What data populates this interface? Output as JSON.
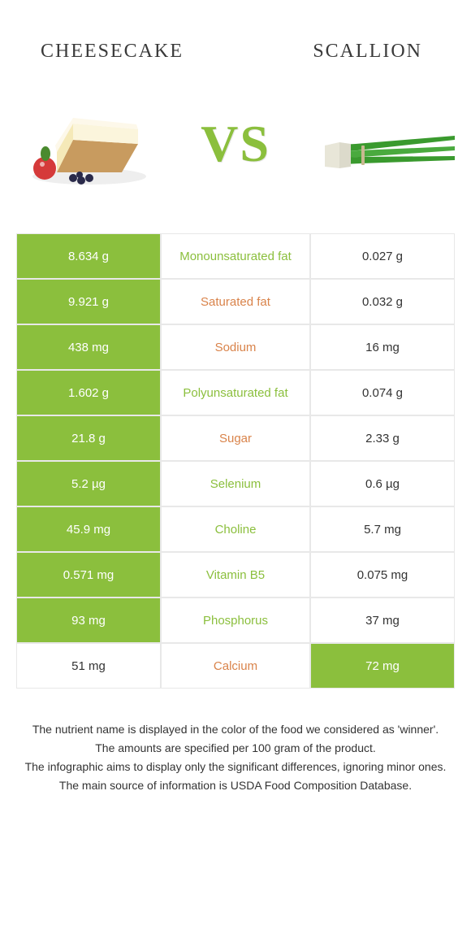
{
  "header": {
    "left": "CHEESECAKE",
    "right": "SCALLION"
  },
  "vs": "VS",
  "colors": {
    "green": "#8bbf3d",
    "orange": "#d9834a",
    "border": "#e8e8e8",
    "text": "#333333",
    "white": "#ffffff"
  },
  "rows": [
    {
      "left": "8.634 g",
      "label": "Monounsaturated fat",
      "right": "0.027 g",
      "winner": "left",
      "labelColor": "green"
    },
    {
      "left": "9.921 g",
      "label": "Saturated fat",
      "right": "0.032 g",
      "winner": "left",
      "labelColor": "orange"
    },
    {
      "left": "438 mg",
      "label": "Sodium",
      "right": "16 mg",
      "winner": "left",
      "labelColor": "orange"
    },
    {
      "left": "1.602 g",
      "label": "Polyunsaturated fat",
      "right": "0.074 g",
      "winner": "left",
      "labelColor": "green"
    },
    {
      "left": "21.8 g",
      "label": "Sugar",
      "right": "2.33 g",
      "winner": "left",
      "labelColor": "orange"
    },
    {
      "left": "5.2 µg",
      "label": "Selenium",
      "right": "0.6 µg",
      "winner": "left",
      "labelColor": "green"
    },
    {
      "left": "45.9 mg",
      "label": "Choline",
      "right": "5.7 mg",
      "winner": "left",
      "labelColor": "green"
    },
    {
      "left": "0.571 mg",
      "label": "Vitamin B5",
      "right": "0.075 mg",
      "winner": "left",
      "labelColor": "green"
    },
    {
      "left": "93 mg",
      "label": "Phosphorus",
      "right": "37 mg",
      "winner": "left",
      "labelColor": "green"
    },
    {
      "left": "51 mg",
      "label": "Calcium",
      "right": "72 mg",
      "winner": "right",
      "labelColor": "orange"
    }
  ],
  "footnotes": [
    "The nutrient name is displayed in the color of the food we considered as 'winner'.",
    "The amounts are specified per 100 gram of the product.",
    "The infographic aims to display only the significant differences, ignoring minor ones.",
    "The main source of information is USDA Food Composition Database."
  ]
}
